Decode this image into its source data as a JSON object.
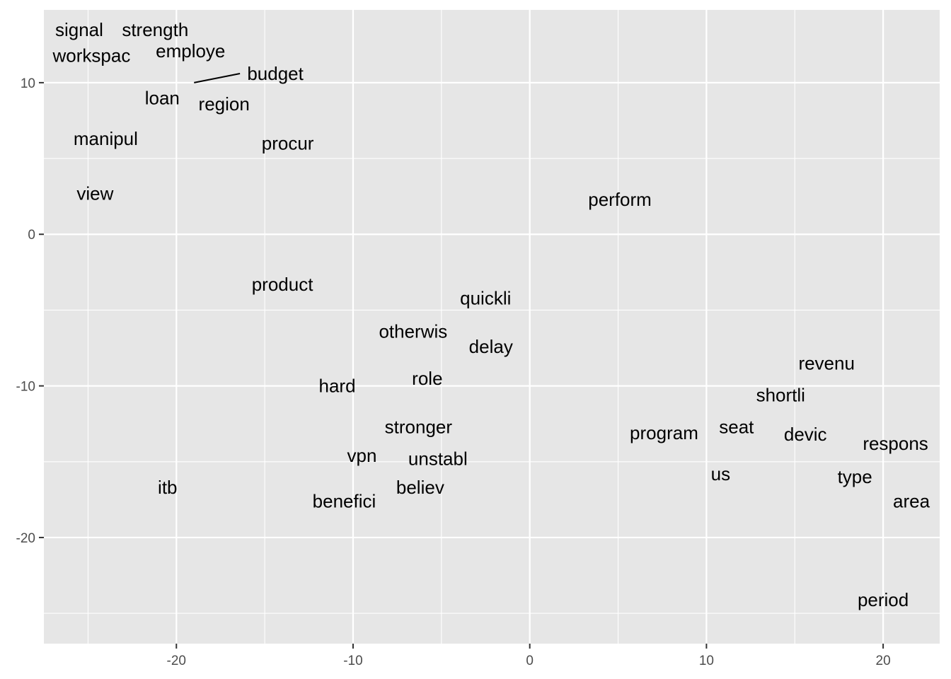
{
  "chart_data": {
    "type": "scatter",
    "title": "",
    "xlabel": "",
    "ylabel": "",
    "xlim": [
      -27.5,
      23.2
    ],
    "ylim": [
      -27.0,
      14.8
    ],
    "x_major_ticks": [
      -20,
      -10,
      0,
      10,
      20
    ],
    "y_major_ticks": [
      10,
      0,
      -10,
      -20
    ],
    "x_minor_ticks": [
      -25,
      -15,
      -5,
      5,
      15
    ],
    "y_minor_ticks": [
      5,
      -5,
      -15,
      -25
    ],
    "x_tick_labels": [
      "-20",
      "-10",
      "0",
      "10",
      "20"
    ],
    "y_tick_labels": [
      "10",
      "0",
      "-10",
      "-20"
    ],
    "grid": true,
    "legend": "none",
    "points": [
      {
        "label": "signal",
        "x": -25.5,
        "y": 13.5
      },
      {
        "label": "strength",
        "x": -21.2,
        "y": 13.5
      },
      {
        "label": "workspac",
        "x": -24.8,
        "y": 11.8
      },
      {
        "label": "employe",
        "x": -19.2,
        "y": 12.1
      },
      {
        "label": "budget",
        "x": -14.4,
        "y": 10.6,
        "lx": -19.0,
        "ly": 10.0
      },
      {
        "label": "loan",
        "x": -20.8,
        "y": 9.0
      },
      {
        "label": "region",
        "x": -17.3,
        "y": 8.6
      },
      {
        "label": "manipul",
        "x": -24.0,
        "y": 6.3
      },
      {
        "label": "procur",
        "x": -13.7,
        "y": 6.0
      },
      {
        "label": "view",
        "x": -24.6,
        "y": 2.7
      },
      {
        "label": "perform",
        "x": 5.1,
        "y": 2.3
      },
      {
        "label": "product",
        "x": -14.0,
        "y": -3.3
      },
      {
        "label": "quickli",
        "x": -2.5,
        "y": -4.2
      },
      {
        "label": "otherwis",
        "x": -6.6,
        "y": -6.4
      },
      {
        "label": "delay",
        "x": -2.2,
        "y": -7.4
      },
      {
        "label": "revenu",
        "x": 16.8,
        "y": -8.5
      },
      {
        "label": "hard",
        "x": -10.9,
        "y": -10.0
      },
      {
        "label": "role",
        "x": -5.8,
        "y": -9.5
      },
      {
        "label": "shortli",
        "x": 14.2,
        "y": -10.6
      },
      {
        "label": "stronger",
        "x": -6.3,
        "y": -12.7
      },
      {
        "label": "program",
        "x": 7.6,
        "y": -13.1
      },
      {
        "label": "seat",
        "x": 11.7,
        "y": -12.7
      },
      {
        "label": "devic",
        "x": 15.6,
        "y": -13.2
      },
      {
        "label": "respons",
        "x": 20.7,
        "y": -13.8
      },
      {
        "label": "vpn",
        "x": -9.5,
        "y": -14.6
      },
      {
        "label": "unstabl",
        "x": -5.2,
        "y": -14.8
      },
      {
        "label": "us",
        "x": 10.8,
        "y": -15.8
      },
      {
        "label": "type",
        "x": 18.4,
        "y": -16.0
      },
      {
        "label": "itb",
        "x": -20.5,
        "y": -16.7
      },
      {
        "label": "believ",
        "x": -6.2,
        "y": -16.7
      },
      {
        "label": "benefici",
        "x": -10.5,
        "y": -17.6
      },
      {
        "label": "area",
        "x": 21.6,
        "y": -17.6
      },
      {
        "label": "period",
        "x": 20.0,
        "y": -24.1
      }
    ]
  }
}
